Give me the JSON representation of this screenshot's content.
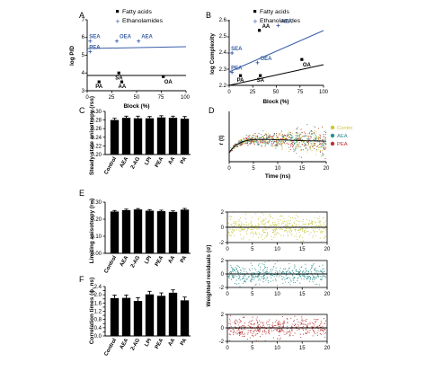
{
  "panels": {
    "A": {
      "letter": "A",
      "type": "scatter",
      "legend": [
        "Fatty acids",
        "Ethanolamides"
      ],
      "xlabel": "Block (%)",
      "ylabel": "log P/D",
      "xlim": [
        0,
        100
      ],
      "ylim": [
        3,
        7
      ],
      "xticks": [
        "0",
        "25",
        "50",
        "75",
        "100"
      ],
      "yticks": [
        "3",
        "4",
        "5",
        "6",
        "7"
      ],
      "series": [
        {
          "name": "Fatty acids",
          "color": "#000000",
          "points": [
            {
              "label": "PA",
              "x": 12,
              "y": 3.5
            },
            {
              "label": "SA",
              "x": 32,
              "y": 4.0
            },
            {
              "label": "AA",
              "x": 35,
              "y": 3.5
            },
            {
              "label": "OA",
              "x": 77,
              "y": 3.8
            }
          ]
        },
        {
          "name": "Ethanolamides",
          "color": "#3a5fa8",
          "points": [
            {
              "label": "SEA",
              "x": 3,
              "y": 5.8
            },
            {
              "label": "PEA",
              "x": 3,
              "y": 5.2
            },
            {
              "label": "OEA",
              "x": 30,
              "y": 5.8
            },
            {
              "label": "AEA",
              "x": 52,
              "y": 5.8
            }
          ]
        }
      ]
    },
    "B": {
      "letter": "B",
      "type": "scatter",
      "legend": [
        "Fatty acids",
        "Ethanolamides"
      ],
      "xlabel": "Block (%)",
      "ylabel": "log Complexity",
      "xlim": [
        0,
        100
      ],
      "ylim": [
        2.2,
        2.6
      ],
      "xticks": [
        "0",
        "25",
        "50",
        "75",
        "100"
      ],
      "yticks": [
        "2.2",
        "2.3",
        "2.4",
        "2.5",
        "2.6"
      ],
      "series": [
        {
          "name": "Fatty acids",
          "color": "#000000",
          "points": [
            {
              "label": "AA",
              "x": 32,
              "y": 2.54
            },
            {
              "label": "PA",
              "x": 12,
              "y": 2.26
            },
            {
              "label": "SA",
              "x": 33,
              "y": 2.26
            },
            {
              "label": "OA",
              "x": 77,
              "y": 2.36
            }
          ]
        },
        {
          "name": "Ethanolamides",
          "color": "#3a5fa8",
          "points": [
            {
              "label": "SEA",
              "x": 3,
              "y": 2.4
            },
            {
              "label": "PEA",
              "x": 3,
              "y": 2.28
            },
            {
              "label": "OEA",
              "x": 30,
              "y": 2.34
            },
            {
              "label": "AEA",
              "x": 52,
              "y": 2.57
            }
          ]
        }
      ]
    },
    "C": {
      "letter": "C",
      "type": "bar",
      "ylabel": "Steady-state anisotropy (rss)",
      "categories": [
        "Control",
        "AEA",
        "2-AG",
        "LPI",
        "PEA",
        "AA",
        "PA"
      ],
      "values": [
        0.28,
        0.285,
        0.284,
        0.284,
        0.286,
        0.285,
        0.283
      ],
      "errors": [
        0.004,
        0.004,
        0.005,
        0.004,
        0.004,
        0.004,
        0.005
      ],
      "ylim": [
        0.2,
        0.3
      ],
      "yticks": [
        "0.20",
        "0.22",
        "0.24",
        "0.26",
        "0.28",
        "0.30"
      ]
    },
    "D": {
      "letter": "D",
      "type": "scatter",
      "xlabel": "Time (ns)",
      "ylabel": "r (t)",
      "xlim": [
        0,
        20
      ],
      "xticks": [
        "0",
        "5",
        "10",
        "15",
        "20"
      ],
      "legend": [
        {
          "name": "Contro",
          "color": "#c8c83c"
        },
        {
          "name": "AEA",
          "color": "#2e8f8f"
        },
        {
          "name": "PEA",
          "color": "#b83232"
        }
      ]
    },
    "E": {
      "letter": "E",
      "type": "bar",
      "ylabel": "Limiting anisotropy (r∞)",
      "categories": [
        "Control",
        "AEA",
        "2-AG",
        "LPI",
        "PEA",
        "AA",
        "PA"
      ],
      "values": [
        0.245,
        0.253,
        0.257,
        0.25,
        0.247,
        0.243,
        0.256
      ],
      "errors": [
        0.006,
        0.006,
        0.005,
        0.006,
        0.006,
        0.006,
        0.007
      ],
      "ylim": [
        0.0,
        0.3
      ],
      "yticks": [
        "0.00",
        "0.10",
        "0.20",
        "0.30"
      ]
    },
    "F": {
      "letter": "F",
      "type": "bar",
      "ylabel": "Correlation times (ϕ, ns)",
      "categories": [
        "Control",
        "AEA",
        "2-AG",
        "LPI",
        "PEA",
        "AA",
        "PA"
      ],
      "values": [
        1.84,
        1.85,
        1.7,
        2.02,
        1.95,
        2.1,
        1.73
      ],
      "errors": [
        0.14,
        0.14,
        0.16,
        0.15,
        0.14,
        0.14,
        0.16
      ],
      "ylim": [
        0.0,
        2.4
      ],
      "yticks": [
        "0.0",
        "0.2",
        "0.4",
        "0.6",
        "0.8",
        "1.0",
        "1.2",
        "1.4",
        "1.6",
        "1.8",
        "2.0",
        "2.2",
        "2.4"
      ]
    },
    "residuals": {
      "ylabel": "Weighted residuals (σ)",
      "xlim": [
        0,
        20
      ],
      "ylim": [
        -2,
        2
      ],
      "xticks": [
        "0",
        "5",
        "10",
        "15",
        "20"
      ],
      "yticks": [
        "2",
        "0",
        "-2"
      ],
      "colors": [
        "#c8c83c",
        "#2e8f8f",
        "#b83232"
      ]
    }
  }
}
